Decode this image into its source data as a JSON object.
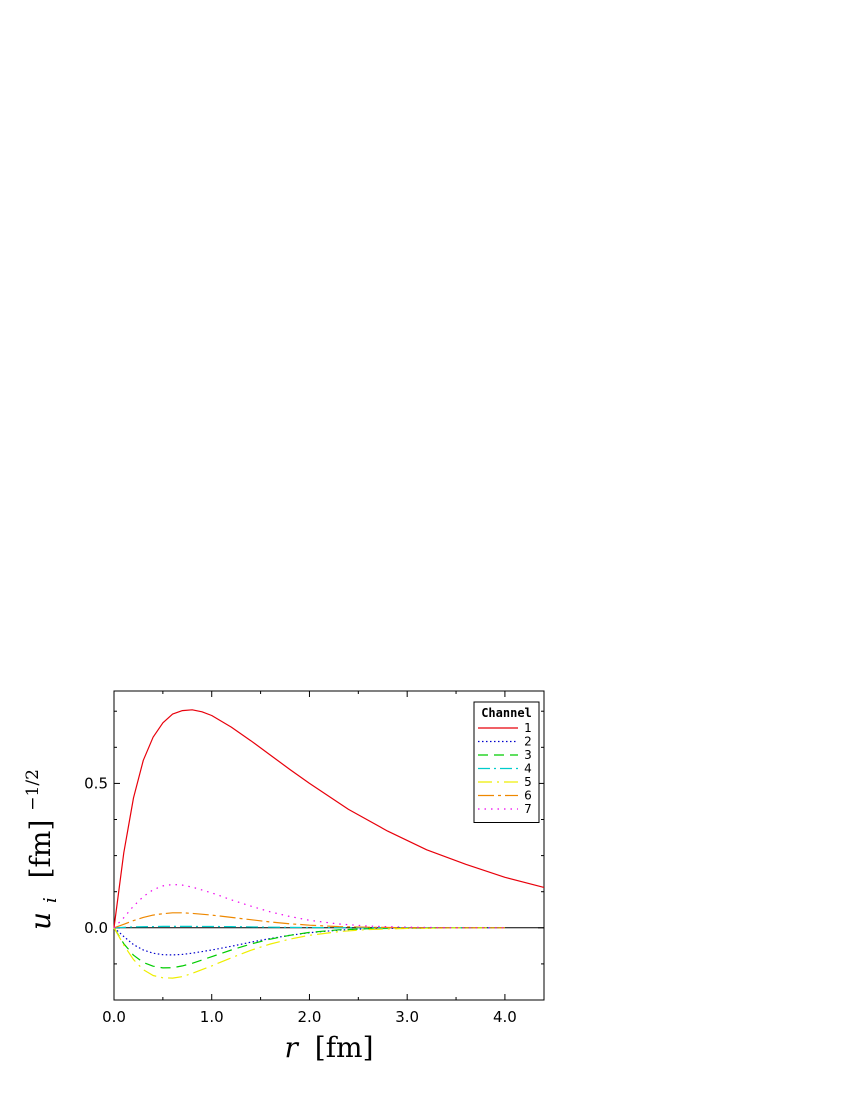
{
  "chart_data": {
    "type": "line",
    "xlabel_var": "r",
    "xlabel_unit": "[fm]",
    "ylabel_var": "u",
    "ylabel_sub": "i",
    "ylabel_unit": "[fm]",
    "ylabel_exp": "−1/2",
    "xlim": [
      0,
      4.4
    ],
    "ylim": [
      -0.25,
      0.82
    ],
    "xticks": [
      0,
      1,
      2,
      3,
      4
    ],
    "xtick_labels": [
      "0.0",
      "1.0",
      "2.0",
      "3.0",
      "4.0"
    ],
    "yticks": [
      0,
      0.5
    ],
    "ytick_labels": [
      "0.0",
      "0.5"
    ],
    "legend": {
      "title": "Channel",
      "position": "top-right"
    },
    "grid": false,
    "series": [
      {
        "name": "1",
        "color": "#e8000b",
        "dash": "",
        "x": [
          0,
          0.1,
          0.2,
          0.3,
          0.4,
          0.5,
          0.6,
          0.7,
          0.8,
          0.9,
          1.0,
          1.2,
          1.4,
          1.6,
          1.8,
          2.0,
          2.4,
          2.8,
          3.2,
          3.6,
          4.0,
          4.4
        ],
        "y": [
          0,
          0.26,
          0.45,
          0.58,
          0.66,
          0.71,
          0.74,
          0.752,
          0.755,
          0.748,
          0.735,
          0.695,
          0.648,
          0.598,
          0.548,
          0.5,
          0.41,
          0.335,
          0.27,
          0.22,
          0.175,
          0.14
        ]
      },
      {
        "name": "2",
        "color": "#0000cc",
        "dash": "1.5,2.5",
        "x": [
          0,
          0.1,
          0.2,
          0.3,
          0.4,
          0.5,
          0.6,
          0.7,
          0.8,
          1.0,
          1.2,
          1.4,
          1.6,
          1.8,
          2.0,
          2.3,
          2.6,
          3.0,
          3.5,
          4.0
        ],
        "y": [
          0,
          -0.03,
          -0.058,
          -0.077,
          -0.088,
          -0.093,
          -0.094,
          -0.092,
          -0.088,
          -0.077,
          -0.064,
          -0.05,
          -0.037,
          -0.026,
          -0.017,
          -0.008,
          -0.003,
          -0.001,
          0,
          0
        ]
      },
      {
        "name": "3",
        "color": "#00cc00",
        "dash": "10,6",
        "x": [
          0,
          0.1,
          0.2,
          0.3,
          0.4,
          0.5,
          0.6,
          0.7,
          0.8,
          1.0,
          1.2,
          1.4,
          1.6,
          1.8,
          2.0,
          2.3,
          2.6,
          3.0,
          3.5,
          4.0
        ],
        "y": [
          0,
          -0.055,
          -0.095,
          -0.12,
          -0.133,
          -0.139,
          -0.138,
          -0.132,
          -0.123,
          -0.1,
          -0.077,
          -0.056,
          -0.039,
          -0.026,
          -0.016,
          -0.007,
          -0.003,
          -0.001,
          0,
          0
        ]
      },
      {
        "name": "4",
        "color": "#00cccc",
        "dash": "12,4,2,4",
        "x": [
          0,
          0.2,
          0.5,
          0.8,
          1.2,
          1.6,
          2.0,
          2.5,
          3.0,
          4.0
        ],
        "y": [
          0,
          0.003,
          0.005,
          0.005,
          0.004,
          0.002,
          0.001,
          0,
          0,
          0
        ]
      },
      {
        "name": "5",
        "color": "#eeee00",
        "dash": "14,5,2,5",
        "x": [
          0,
          0.1,
          0.2,
          0.3,
          0.4,
          0.5,
          0.6,
          0.7,
          0.8,
          1.0,
          1.2,
          1.4,
          1.6,
          1.8,
          2.0,
          2.3,
          2.6,
          3.0,
          3.5,
          4.0
        ],
        "y": [
          0,
          -0.06,
          -0.11,
          -0.145,
          -0.165,
          -0.173,
          -0.174,
          -0.169,
          -0.158,
          -0.132,
          -0.104,
          -0.078,
          -0.056,
          -0.039,
          -0.026,
          -0.013,
          -0.006,
          -0.002,
          0,
          0
        ]
      },
      {
        "name": "6",
        "color": "#ee8800",
        "dash": "16,4,3,4",
        "x": [
          0,
          0.1,
          0.2,
          0.3,
          0.4,
          0.5,
          0.6,
          0.7,
          0.8,
          1.0,
          1.2,
          1.4,
          1.6,
          1.8,
          2.0,
          2.3,
          2.6,
          3.0,
          3.5,
          4.0
        ],
        "y": [
          0,
          0.012,
          0.025,
          0.036,
          0.044,
          0.049,
          0.052,
          0.052,
          0.05,
          0.044,
          0.036,
          0.028,
          0.02,
          0.014,
          0.009,
          0.004,
          0.002,
          0,
          0,
          0
        ]
      },
      {
        "name": "7",
        "color": "#ee00ee",
        "dash": "1.5,5",
        "x": [
          0,
          0.1,
          0.2,
          0.3,
          0.4,
          0.5,
          0.6,
          0.7,
          0.8,
          1.0,
          1.2,
          1.4,
          1.6,
          1.8,
          2.0,
          2.3,
          2.6,
          3.0,
          3.5,
          4.0
        ],
        "y": [
          0,
          0.035,
          0.075,
          0.108,
          0.132,
          0.145,
          0.15,
          0.148,
          0.141,
          0.121,
          0.097,
          0.075,
          0.055,
          0.039,
          0.026,
          0.013,
          0.006,
          0.002,
          0,
          0
        ]
      }
    ]
  }
}
